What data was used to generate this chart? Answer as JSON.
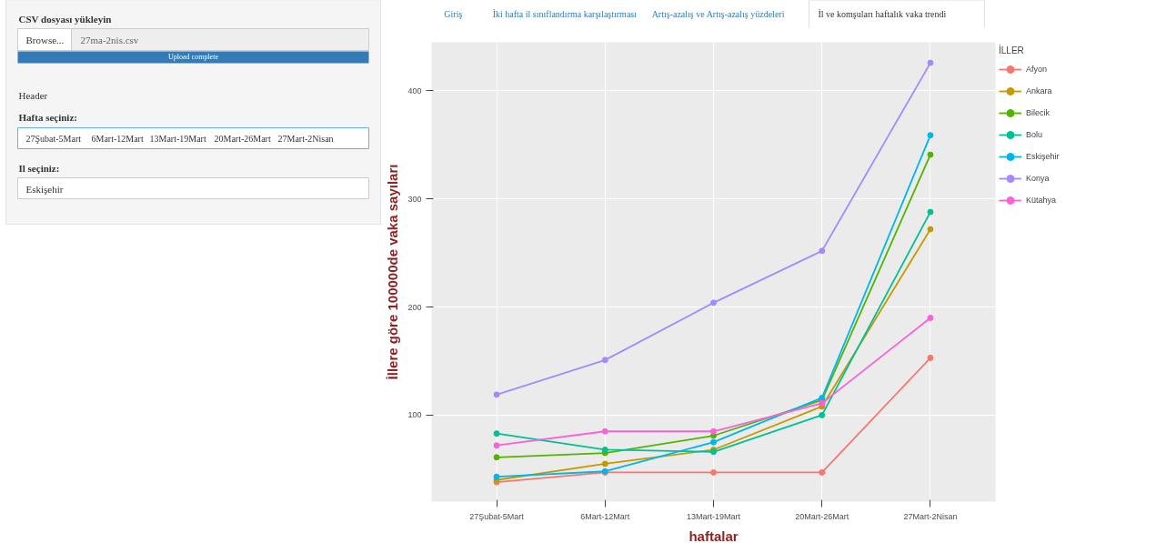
{
  "chart_data": [
    {
      "type": "other",
      "annotations": [
        "CSV dosyası yükleyin",
        "Browse...",
        "27ma-2nis.csv",
        "Upload complete",
        "Header",
        "Hafta seçiniz:",
        "27Şubat-5Mart",
        "6Mart-12Mart",
        "13Mart-19Mart",
        "20Mart-26Mart",
        "27Mart-2Nisan",
        "Il seçiniz:",
        "Eskişehir"
      ]
    },
    {
      "type": "line",
      "xlabel": "haftalar",
      "ylabel": "İllere göre 100000de vaka sayıları",
      "legend_title": "İLLER",
      "legend": "right",
      "grid": true,
      "marker": "circle",
      "line_style": "solid",
      "annotations": [
        "Giriş",
        "İki hafta il sınıflandırma karşılaştırması",
        "Artış-azalış ve Artış-azalış yüzdeleri",
        "İl ve komşuları haftalık vaka trendi"
      ],
      "categories": [
        "27Şubat-5Mart",
        "6Mart-12Mart",
        "13Mart-19Mart",
        "20Mart-26Mart",
        "27Mart-2Nisan"
      ],
      "ylim": [
        20,
        445
      ],
      "yticks": [
        100,
        200,
        300,
        400
      ],
      "series": [
        {
          "name": "Afyon",
          "color": "#F8766D",
          "values": [
            38,
            47,
            47,
            47,
            153
          ]
        },
        {
          "name": "Ankara",
          "color": "#C49A00",
          "values": [
            40,
            55,
            68,
            108,
            272
          ]
        },
        {
          "name": "Bilecik",
          "color": "#53B400",
          "values": [
            61,
            65,
            81,
            114,
            341
          ]
        },
        {
          "name": "Bolu",
          "color": "#00C094",
          "values": [
            83,
            68,
            66,
            100,
            288
          ]
        },
        {
          "name": "Eskişehir",
          "color": "#00B6EB",
          "values": [
            43,
            48,
            75,
            116,
            359
          ]
        },
        {
          "name": "Konya",
          "color": "#A58AFF",
          "values": [
            119,
            151,
            204,
            252,
            426
          ]
        },
        {
          "name": "Kütahya",
          "color": "#FB61D7",
          "values": [
            72,
            85,
            85,
            111,
            190
          ]
        }
      ]
    }
  ]
}
